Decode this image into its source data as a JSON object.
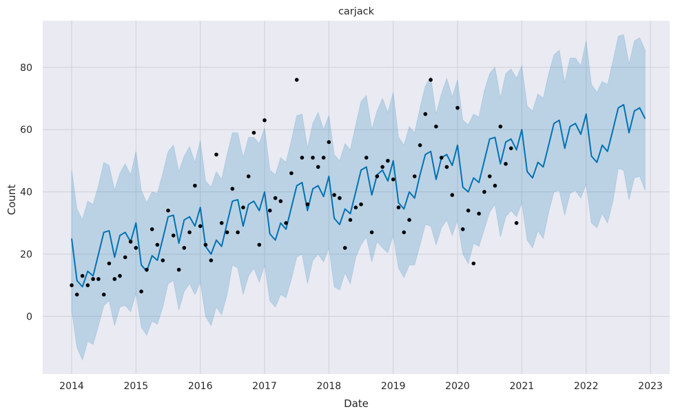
{
  "chart_data": {
    "type": "line",
    "title": "carjack",
    "xlabel": "Date",
    "ylabel": "Count",
    "x_ticks": [
      "2014",
      "2015",
      "2016",
      "2017",
      "2018",
      "2019",
      "2020",
      "2021",
      "2022",
      "2023"
    ],
    "y_ticks": [
      "0",
      "20",
      "40",
      "60",
      "80"
    ],
    "xlim": [
      2013.55,
      2023.3
    ],
    "ylim": [
      -18.5,
      95
    ],
    "grid": true,
    "colors": {
      "background": "#eaeaf2",
      "grid": "#cfcfd6",
      "forecast_line": "#0072b2",
      "uncertainty_band": "#0072b2",
      "observed_points": "#000000"
    },
    "series": [
      {
        "name": "yhat",
        "kind": "line",
        "x": [
          2014.0,
          2014.083,
          2014.167,
          2014.25,
          2014.333,
          2014.417,
          2014.5,
          2014.583,
          2014.667,
          2014.75,
          2014.833,
          2014.917,
          2015.0,
          2015.083,
          2015.167,
          2015.25,
          2015.333,
          2015.417,
          2015.5,
          2015.583,
          2015.667,
          2015.75,
          2015.833,
          2015.917,
          2016.0,
          2016.083,
          2016.167,
          2016.25,
          2016.333,
          2016.417,
          2016.5,
          2016.583,
          2016.667,
          2016.75,
          2016.833,
          2016.917,
          2017.0,
          2017.083,
          2017.167,
          2017.25,
          2017.333,
          2017.417,
          2017.5,
          2017.583,
          2017.667,
          2017.75,
          2017.833,
          2017.917,
          2018.0,
          2018.083,
          2018.167,
          2018.25,
          2018.333,
          2018.417,
          2018.5,
          2018.583,
          2018.667,
          2018.75,
          2018.833,
          2018.917,
          2019.0,
          2019.083,
          2019.167,
          2019.25,
          2019.333,
          2019.417,
          2019.5,
          2019.583,
          2019.667,
          2019.75,
          2019.833,
          2019.917,
          2020.0,
          2020.083,
          2020.167,
          2020.25,
          2020.333,
          2020.417,
          2020.5,
          2020.583,
          2020.667,
          2020.75,
          2020.833,
          2020.917,
          2021.0,
          2021.083,
          2021.167,
          2021.25,
          2021.333,
          2021.417,
          2021.5,
          2021.583,
          2021.667,
          2021.75,
          2021.833,
          2021.917,
          2022.0,
          2022.083,
          2022.167,
          2022.25,
          2022.333,
          2022.417,
          2022.5,
          2022.583,
          2022.667,
          2022.75,
          2022.833,
          2022.917
        ],
        "y": [
          25,
          11.5,
          9.5,
          14.5,
          13,
          20,
          27,
          27.5,
          19,
          26,
          27,
          24,
          30,
          16.5,
          14.5,
          19.5,
          18,
          25,
          32,
          32.5,
          23.5,
          31,
          32,
          29,
          35,
          22.5,
          20,
          24.5,
          22.5,
          30,
          37,
          37.5,
          29,
          36,
          37,
          34,
          40,
          26.5,
          24.5,
          30,
          28,
          35,
          42,
          43,
          34,
          41,
          42,
          38.5,
          45,
          31.5,
          29.5,
          34.5,
          33,
          40,
          47,
          48,
          39,
          45.5,
          47,
          43.5,
          50,
          36.5,
          34.5,
          40,
          38,
          45.5,
          52,
          53,
          44,
          51,
          52,
          48.5,
          55,
          41.5,
          40,
          44.5,
          43,
          50,
          57,
          57.5,
          49,
          56,
          57,
          53.5,
          60,
          46.5,
          44.5,
          49.5,
          48,
          55,
          62,
          63,
          54,
          61,
          62,
          58.5,
          65,
          51.5,
          49.5,
          55,
          53,
          60,
          67,
          68,
          59,
          66,
          67,
          63.5
        ]
      },
      {
        "name": "yhat_upper",
        "kind": "band",
        "y": [
          47,
          34.5,
          31,
          37,
          36,
          42,
          49.5,
          48.5,
          40.5,
          46,
          49,
          45.5,
          53,
          40.5,
          36.5,
          40,
          39.5,
          46,
          53,
          55,
          46.5,
          51.5,
          54.5,
          49.5,
          56.5,
          43.5,
          41.5,
          46.5,
          44,
          52,
          59,
          59,
          51,
          57.5,
          57.5,
          55.5,
          60.5,
          47,
          45.5,
          51,
          49.5,
          56.5,
          64.5,
          65,
          54,
          62,
          65.5,
          60,
          64.5,
          52,
          50,
          55.5,
          53.5,
          61.5,
          69,
          71,
          60,
          66,
          70,
          65.5,
          72,
          57.5,
          55,
          61,
          59,
          67,
          74,
          77,
          65,
          71.5,
          76.5,
          70.5,
          76,
          63,
          61.5,
          65,
          64,
          72.5,
          78,
          80,
          70,
          78,
          79.5,
          76.5,
          80.5,
          67.5,
          66,
          71.5,
          70,
          78,
          84,
          85.5,
          75,
          83,
          83,
          80.5,
          88.5,
          74.5,
          72,
          75.5,
          74.5,
          82,
          90,
          90.5,
          81,
          88.5,
          89.5,
          85.5
        ]
      },
      {
        "name": "yhat_lower",
        "kind": "band",
        "y": [
          2,
          -10,
          -14,
          -8,
          -9,
          -3,
          3.5,
          5,
          -3,
          3,
          3.5,
          1.5,
          7.5,
          -3.5,
          -6,
          -1.5,
          -2.5,
          3,
          10.5,
          11.5,
          2,
          8,
          10.5,
          7,
          11,
          0,
          -3,
          3,
          0.5,
          7,
          16.5,
          15.5,
          7,
          13,
          15.5,
          11,
          16.5,
          5,
          3,
          7,
          6,
          12,
          19,
          20,
          10.5,
          18,
          20,
          17.5,
          22,
          9.5,
          8.5,
          14,
          10.5,
          19,
          23,
          25.5,
          17.5,
          24,
          22,
          20.5,
          26,
          15.5,
          12.5,
          16.5,
          16.5,
          23,
          29.5,
          29,
          23,
          28.5,
          31,
          26,
          31,
          20,
          17,
          23.5,
          22.5,
          28,
          33.5,
          36,
          25.5,
          32,
          34,
          32,
          36.5,
          24.5,
          22,
          27.5,
          25,
          33.5,
          40,
          40.5,
          32.5,
          39.5,
          40.5,
          38,
          42.5,
          30,
          28.5,
          33,
          30,
          37,
          47.5,
          47,
          37.5,
          44.5,
          45,
          40.5
        ]
      },
      {
        "name": "observed",
        "kind": "scatter",
        "points": [
          [
            2014.0,
            10
          ],
          [
            2014.083,
            7
          ],
          [
            2014.167,
            13
          ],
          [
            2014.25,
            10
          ],
          [
            2014.333,
            12
          ],
          [
            2014.417,
            12
          ],
          [
            2014.5,
            7
          ],
          [
            2014.583,
            17
          ],
          [
            2014.667,
            12
          ],
          [
            2014.75,
            13
          ],
          [
            2014.833,
            19
          ],
          [
            2014.917,
            24
          ],
          [
            2015.0,
            22
          ],
          [
            2015.083,
            8
          ],
          [
            2015.167,
            15
          ],
          [
            2015.25,
            28
          ],
          [
            2015.333,
            23
          ],
          [
            2015.417,
            18
          ],
          [
            2015.5,
            34
          ],
          [
            2015.583,
            26
          ],
          [
            2015.667,
            15
          ],
          [
            2015.75,
            22
          ],
          [
            2015.833,
            27
          ],
          [
            2015.917,
            42
          ],
          [
            2016.0,
            29
          ],
          [
            2016.083,
            23
          ],
          [
            2016.167,
            18
          ],
          [
            2016.25,
            52
          ],
          [
            2016.333,
            30
          ],
          [
            2016.417,
            27
          ],
          [
            2016.5,
            41
          ],
          [
            2016.583,
            27
          ],
          [
            2016.667,
            35
          ],
          [
            2016.75,
            45
          ],
          [
            2016.833,
            59
          ],
          [
            2016.917,
            23
          ],
          [
            2017.0,
            63
          ],
          [
            2017.083,
            34
          ],
          [
            2017.167,
            38
          ],
          [
            2017.25,
            37
          ],
          [
            2017.333,
            30
          ],
          [
            2017.417,
            46
          ],
          [
            2017.5,
            76
          ],
          [
            2017.583,
            51
          ],
          [
            2017.667,
            36
          ],
          [
            2017.75,
            51
          ],
          [
            2017.833,
            48
          ],
          [
            2017.917,
            51
          ],
          [
            2018.0,
            56
          ],
          [
            2018.083,
            39
          ],
          [
            2018.167,
            38
          ],
          [
            2018.25,
            22
          ],
          [
            2018.333,
            31
          ],
          [
            2018.417,
            35
          ],
          [
            2018.5,
            36
          ],
          [
            2018.583,
            51
          ],
          [
            2018.667,
            27
          ],
          [
            2018.75,
            45
          ],
          [
            2018.833,
            48
          ],
          [
            2018.917,
            50
          ],
          [
            2019.0,
            44
          ],
          [
            2019.083,
            35
          ],
          [
            2019.167,
            27
          ],
          [
            2019.25,
            31
          ],
          [
            2019.333,
            45
          ],
          [
            2019.417,
            55
          ],
          [
            2019.5,
            65
          ],
          [
            2019.583,
            76
          ],
          [
            2019.667,
            61
          ],
          [
            2019.75,
            51
          ],
          [
            2019.833,
            48
          ],
          [
            2019.917,
            39
          ],
          [
            2020.0,
            67
          ],
          [
            2020.083,
            28
          ],
          [
            2020.167,
            34
          ],
          [
            2020.25,
            17
          ],
          [
            2020.333,
            33
          ],
          [
            2020.417,
            40
          ],
          [
            2020.5,
            45
          ],
          [
            2020.583,
            42
          ],
          [
            2020.667,
            61
          ],
          [
            2020.75,
            49
          ],
          [
            2020.833,
            54
          ],
          [
            2020.917,
            30
          ]
        ]
      }
    ]
  }
}
